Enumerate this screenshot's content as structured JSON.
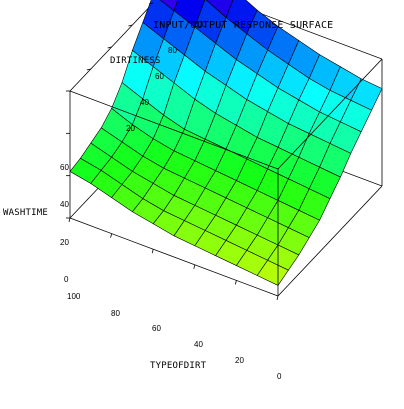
{
  "chart_data": {
    "type": "surface",
    "title": "INPUT/OUTPUT RESPONSE SURFACE",
    "xlabel": "TYPEOFDIRT",
    "ylabel": "DIRTINESS",
    "zlabel": "WASHTIME",
    "xlim": [
      0,
      100
    ],
    "ylim": [
      0,
      100
    ],
    "zlim": [
      0,
      60
    ],
    "x_ticks": [
      "100",
      "80",
      "60",
      "40",
      "20",
      "0"
    ],
    "y_ticks": [
      "20",
      "40",
      "60",
      "80",
      "100"
    ],
    "z_ticks": [
      "0",
      "20",
      "40",
      "60"
    ],
    "x": [
      0,
      10,
      20,
      30,
      40,
      50,
      60,
      70,
      80,
      90,
      100
    ],
    "y": [
      0,
      10,
      20,
      30,
      40,
      50,
      60,
      70,
      80,
      90,
      100
    ],
    "z": [
      [
        5,
        6,
        7,
        8,
        9,
        10,
        12,
        14,
        17,
        20,
        22
      ],
      [
        7,
        8,
        9,
        10,
        11,
        12,
        13,
        15,
        18,
        21,
        23
      ],
      [
        9,
        10,
        11,
        12,
        13,
        14,
        15,
        17,
        19,
        22,
        25
      ],
      [
        12,
        13,
        14,
        15,
        16,
        17,
        18,
        19,
        21,
        24,
        27
      ],
      [
        15,
        16,
        17,
        18,
        19,
        20,
        21,
        22,
        24,
        27,
        31
      ],
      [
        20,
        21,
        22,
        23,
        24,
        25,
        26,
        27,
        30,
        34,
        38
      ],
      [
        25,
        26,
        27,
        28,
        29,
        31,
        33,
        36,
        40,
        44,
        48
      ],
      [
        31,
        32,
        33,
        34,
        36,
        38,
        41,
        44,
        48,
        52,
        56
      ],
      [
        36,
        37,
        38,
        40,
        42,
        45,
        48,
        52,
        56,
        60,
        64
      ],
      [
        41,
        42,
        43,
        45,
        48,
        51,
        55,
        59,
        64,
        69,
        73
      ],
      [
        46,
        47,
        49,
        51,
        54,
        57,
        61,
        66,
        71,
        77,
        82
      ]
    ],
    "colormap": "hue",
    "box": true
  }
}
